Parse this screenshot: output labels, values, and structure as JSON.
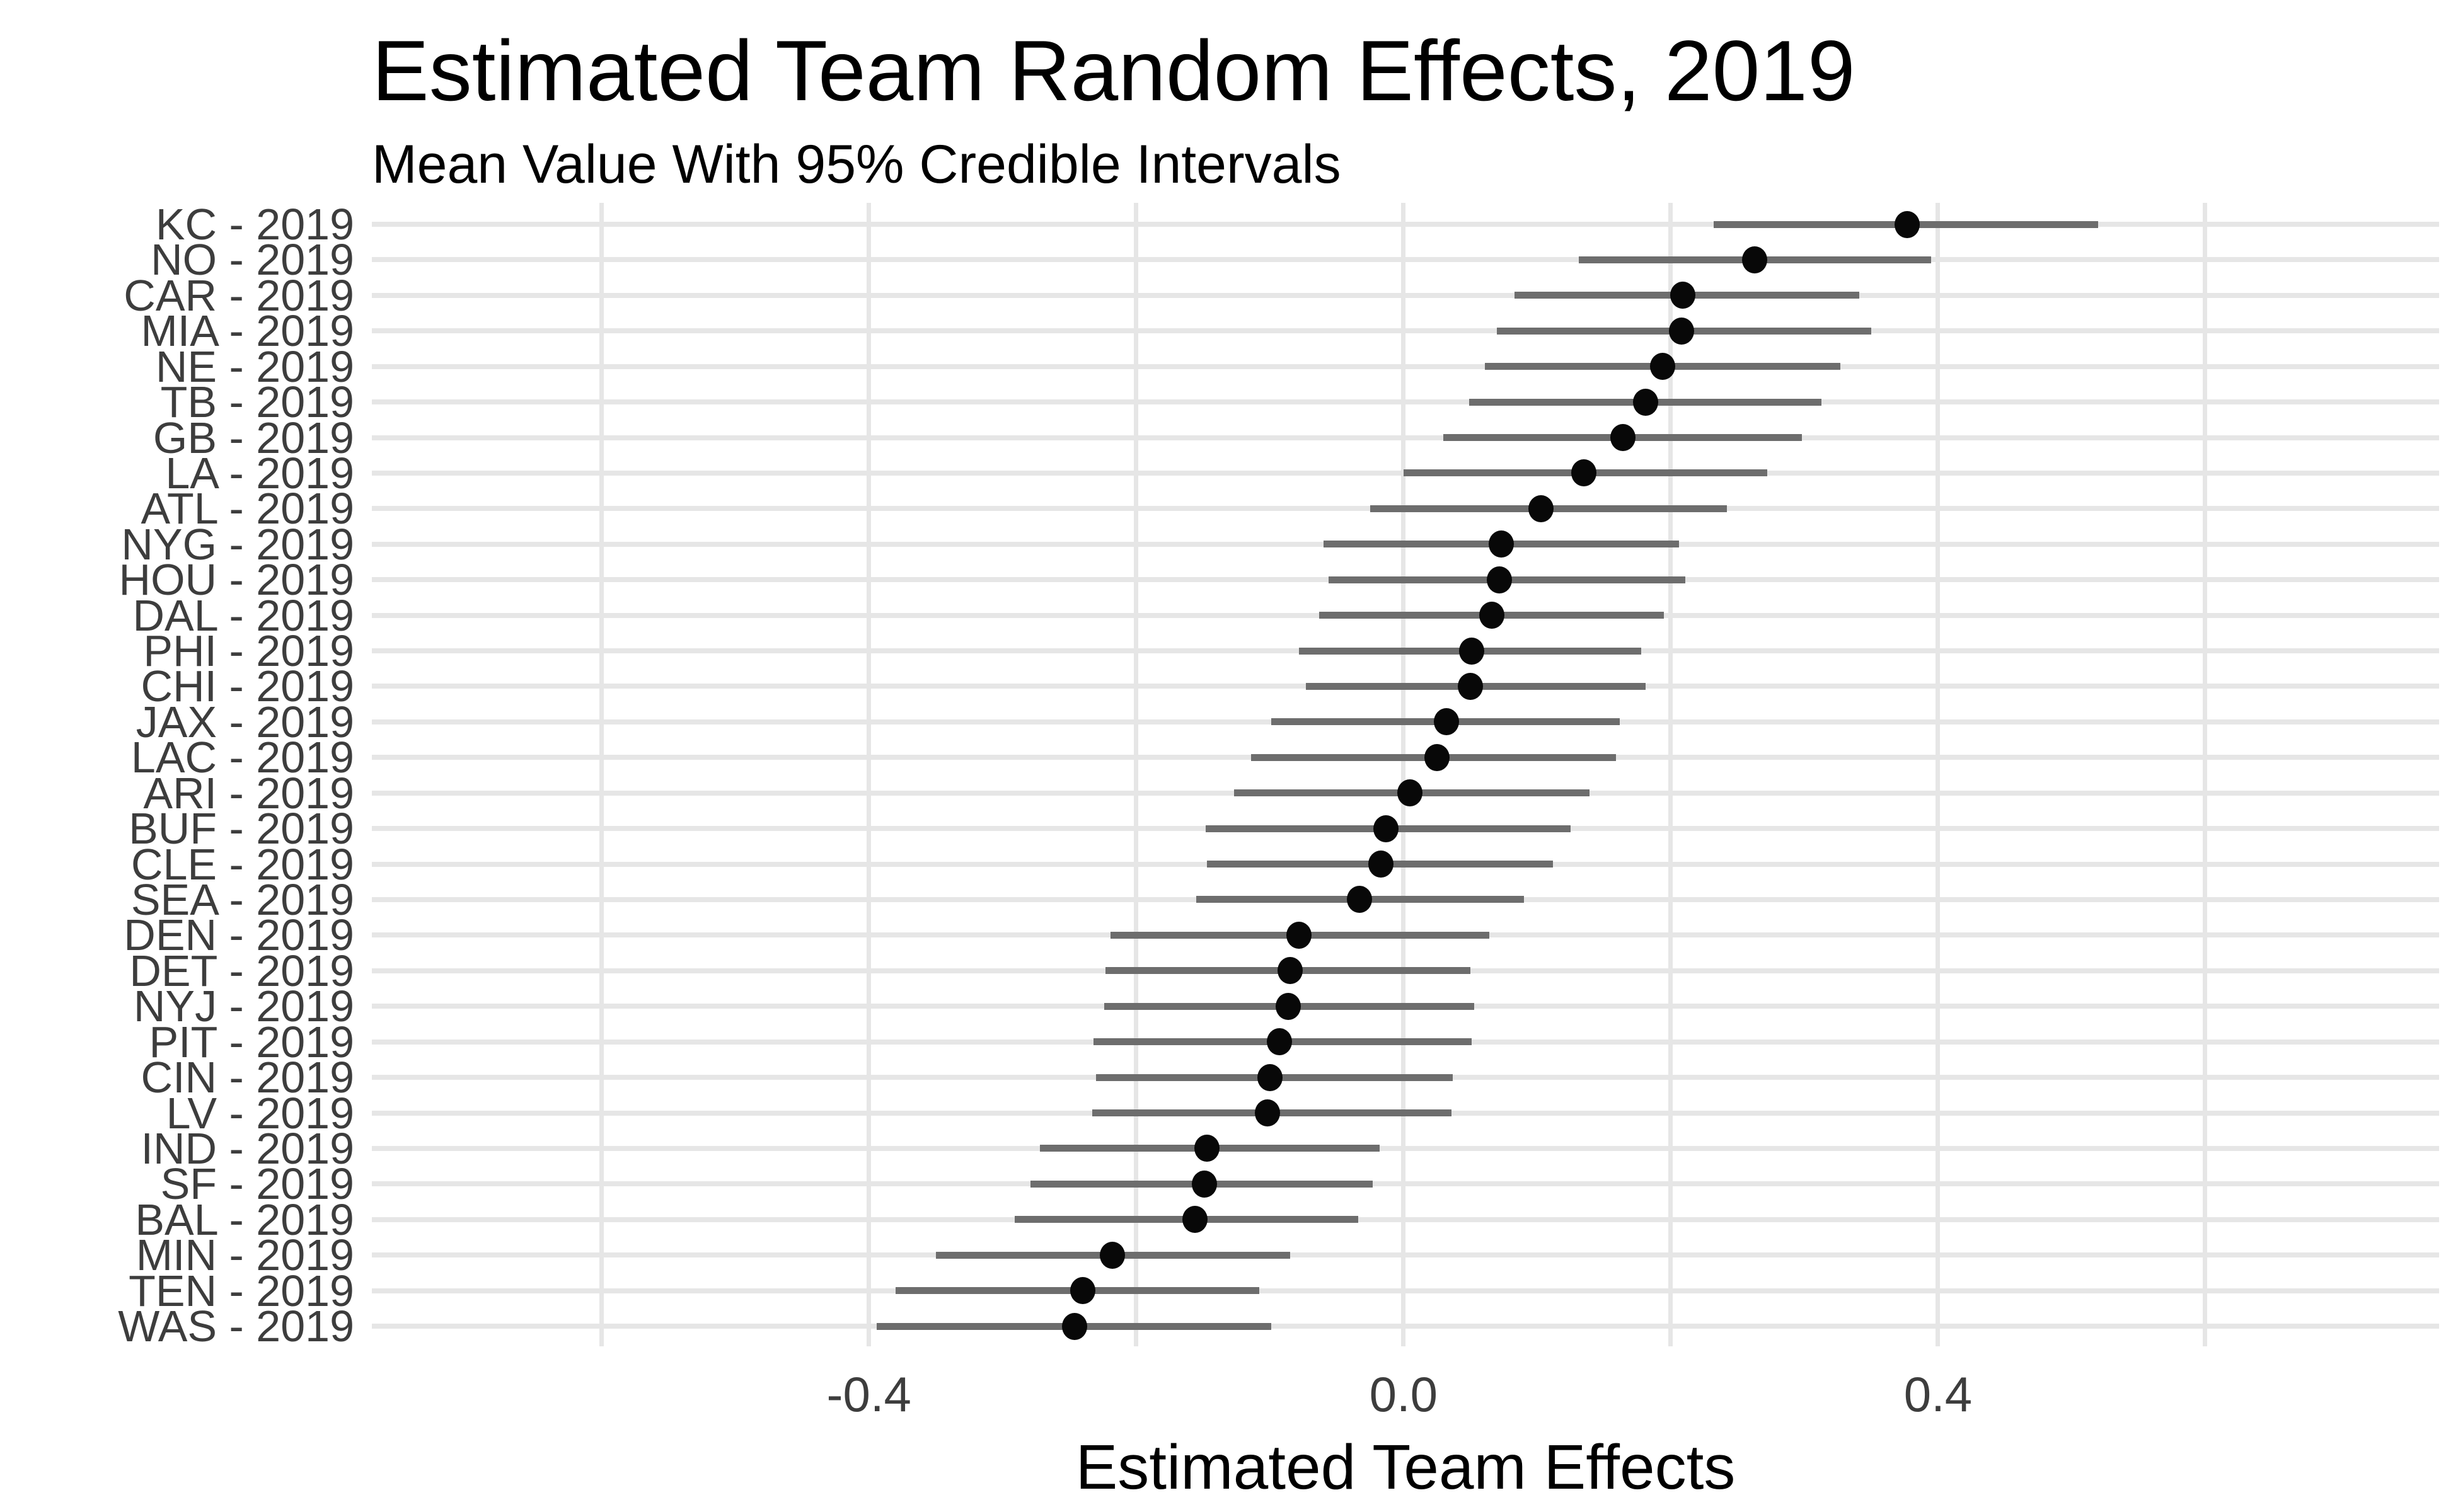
{
  "chart_data": {
    "type": "scatter",
    "subtype": "dot-with-horizontal-error-bars",
    "title": "Estimated Team Random Effects, 2019",
    "subtitle": "Mean Value With 95% Credible Intervals",
    "xlabel": "Estimated Team Effects",
    "ylabel": "",
    "xlim": [
      -0.772,
      0.775
    ],
    "grid": "on",
    "legend": "none",
    "x_axis": {
      "tick_labels": [
        "-0.4",
        "0.0",
        "0.4"
      ],
      "tick_values": [
        -0.4,
        0.0,
        0.4
      ],
      "gridline_values": [
        -0.6,
        -0.4,
        -0.2,
        0.0,
        0.2,
        0.4,
        0.6
      ]
    },
    "teams": [
      {
        "label": "KC - 2019",
        "mean": 0.377,
        "lower": 0.232,
        "upper": 0.52
      },
      {
        "label": "NO - 2019",
        "mean": 0.263,
        "lower": 0.131,
        "upper": 0.395
      },
      {
        "label": "CAR - 2019",
        "mean": 0.209,
        "lower": 0.083,
        "upper": 0.341
      },
      {
        "label": "MIA - 2019",
        "mean": 0.208,
        "lower": 0.07,
        "upper": 0.35
      },
      {
        "label": "NE - 2019",
        "mean": 0.194,
        "lower": 0.061,
        "upper": 0.327
      },
      {
        "label": "TB - 2019",
        "mean": 0.181,
        "lower": 0.049,
        "upper": 0.313
      },
      {
        "label": "GB - 2019",
        "mean": 0.164,
        "lower": 0.03,
        "upper": 0.298
      },
      {
        "label": "LA - 2019",
        "mean": 0.135,
        "lower": 0.0,
        "upper": 0.272
      },
      {
        "label": "ATL - 2019",
        "mean": 0.103,
        "lower": -0.025,
        "upper": 0.242
      },
      {
        "label": "NYG - 2019",
        "mean": 0.073,
        "lower": -0.06,
        "upper": 0.206
      },
      {
        "label": "HOU - 2019",
        "mean": 0.072,
        "lower": -0.056,
        "upper": 0.211
      },
      {
        "label": "DAL - 2019",
        "mean": 0.066,
        "lower": -0.063,
        "upper": 0.195
      },
      {
        "label": "PHI - 2019",
        "mean": 0.051,
        "lower": -0.078,
        "upper": 0.178
      },
      {
        "label": "CHI - 2019",
        "mean": 0.05,
        "lower": -0.073,
        "upper": 0.181
      },
      {
        "label": "JAX - 2019",
        "mean": 0.032,
        "lower": -0.099,
        "upper": 0.162
      },
      {
        "label": "LAC - 2019",
        "mean": 0.025,
        "lower": -0.114,
        "upper": 0.159
      },
      {
        "label": "ARI - 2019",
        "mean": 0.005,
        "lower": -0.127,
        "upper": 0.139
      },
      {
        "label": "BUF - 2019",
        "mean": -0.013,
        "lower": -0.148,
        "upper": 0.125
      },
      {
        "label": "CLE - 2019",
        "mean": -0.017,
        "lower": -0.147,
        "upper": 0.112
      },
      {
        "label": "SEA - 2019",
        "mean": -0.033,
        "lower": -0.155,
        "upper": 0.09
      },
      {
        "label": "DEN - 2019",
        "mean": -0.078,
        "lower": -0.219,
        "upper": 0.064
      },
      {
        "label": "DET - 2019",
        "mean": -0.085,
        "lower": -0.223,
        "upper": 0.05
      },
      {
        "label": "NYJ - 2019",
        "mean": -0.086,
        "lower": -0.224,
        "upper": 0.053
      },
      {
        "label": "PIT - 2019",
        "mean": -0.093,
        "lower": -0.232,
        "upper": 0.051
      },
      {
        "label": "CIN - 2019",
        "mean": -0.1,
        "lower": -0.23,
        "upper": 0.037
      },
      {
        "label": "LV - 2019",
        "mean": -0.102,
        "lower": -0.233,
        "upper": 0.036
      },
      {
        "label": "IND - 2019",
        "mean": -0.147,
        "lower": -0.272,
        "upper": -0.018
      },
      {
        "label": "SF - 2019",
        "mean": -0.149,
        "lower": -0.279,
        "upper": -0.023
      },
      {
        "label": "BAL - 2019",
        "mean": -0.156,
        "lower": -0.291,
        "upper": -0.034
      },
      {
        "label": "MIN - 2019",
        "mean": -0.218,
        "lower": -0.35,
        "upper": -0.085
      },
      {
        "label": "TEN - 2019",
        "mean": -0.24,
        "lower": -0.38,
        "upper": -0.108
      },
      {
        "label": "WAS - 2019",
        "mean": -0.246,
        "lower": -0.394,
        "upper": -0.099
      }
    ],
    "colors": {
      "background": "#ffffff",
      "gridline": "#e6e6e6",
      "interval_bar": "#6d6d6d",
      "mean_dot": "#080808",
      "axis_text": "#3d3d3d",
      "title_text": "#000000"
    }
  }
}
